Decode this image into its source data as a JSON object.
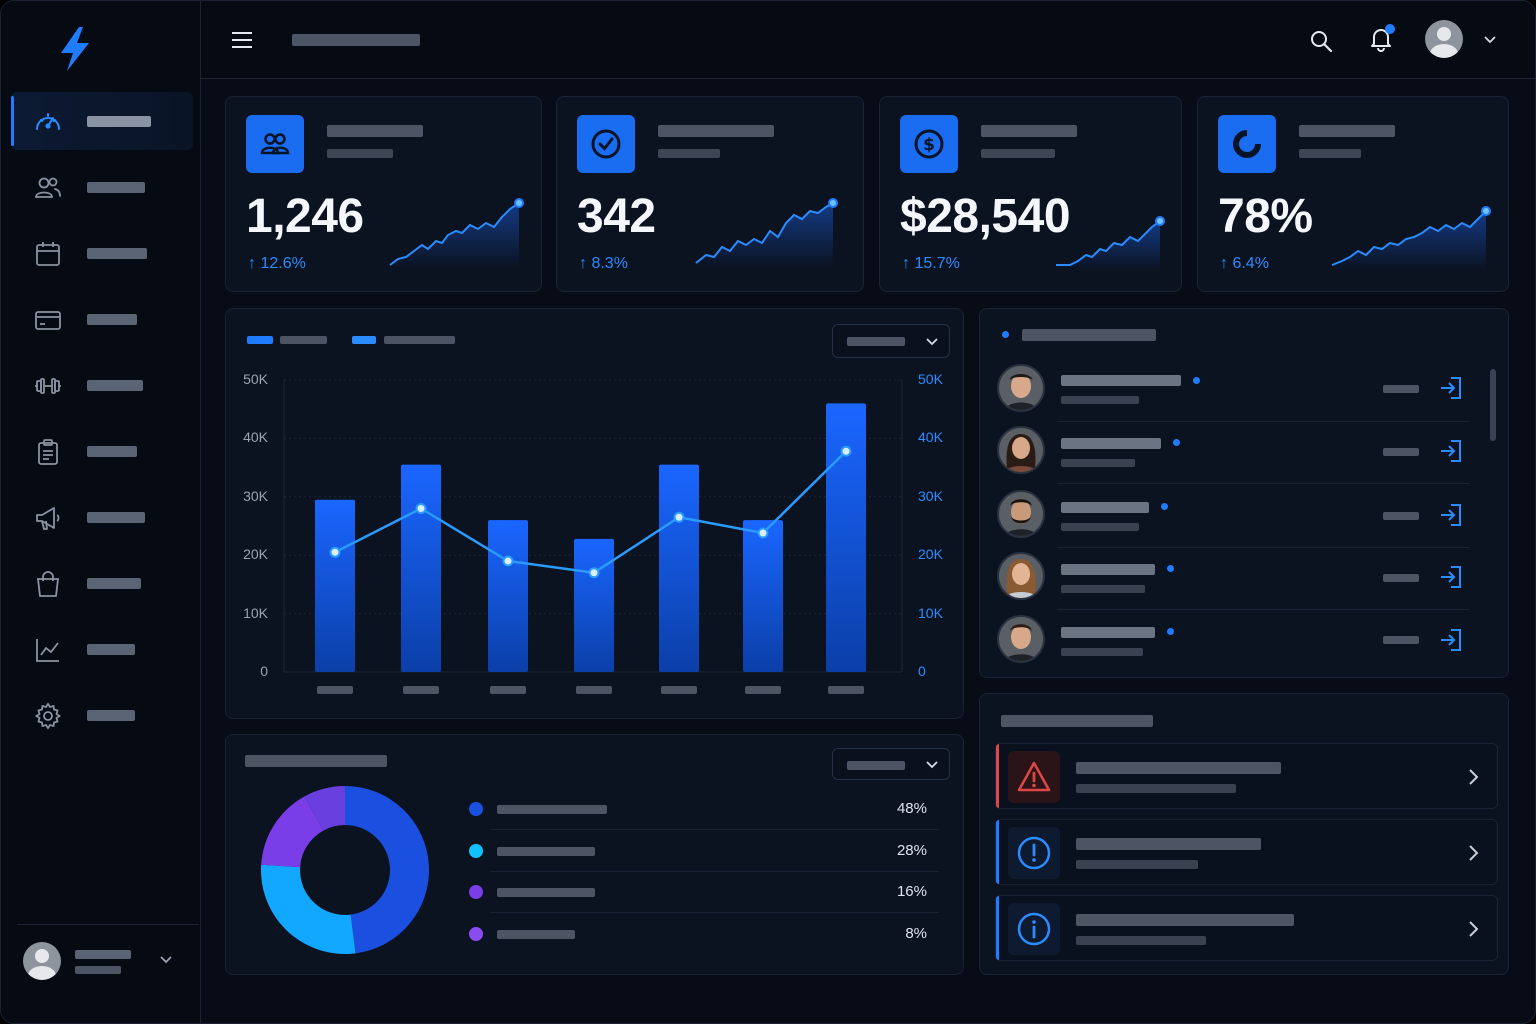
{
  "kpis": [
    {
      "value": "1,246",
      "delta": "↑ 12.6%",
      "icon": "users-icon"
    },
    {
      "value": "342",
      "delta": "↑ 8.3%",
      "icon": "check-circle-icon"
    },
    {
      "value": "$28,540",
      "delta": "↑ 15.7%",
      "icon": "dollar-circle-icon"
    },
    {
      "value": "78%",
      "delta": "↑ 6.4%",
      "icon": "pie-chart-icon"
    }
  ],
  "nav_icons": [
    "speedometer-icon",
    "users-icon",
    "calendar-icon",
    "credit-card-icon",
    "dumbbell-icon",
    "clipboard-icon",
    "megaphone-icon",
    "shopping-bag-icon",
    "line-chart-icon",
    "gear-icon"
  ],
  "chart_data": [
    {
      "type": "bar",
      "y_left_ticks": [
        "50K",
        "40K",
        "30K",
        "20K",
        "10K",
        "0"
      ],
      "y_right_ticks": [
        "50K",
        "40K",
        "30K",
        "20K",
        "10K",
        "0"
      ],
      "ylim": [
        0,
        50000
      ],
      "series": [
        {
          "type": "bar",
          "values": [
            29500,
            35500,
            26000,
            22800,
            35500,
            26000,
            46000
          ]
        },
        {
          "type": "line",
          "values": [
            20500,
            28000,
            19000,
            17000,
            26500,
            23800,
            37800
          ]
        }
      ],
      "colors": {
        "bar": "#1a64ff",
        "line": "#2a9bff"
      },
      "grid": true
    },
    {
      "type": "pie",
      "values": [
        48,
        28,
        16,
        8
      ],
      "labels": [
        "48%",
        "28%",
        "16%",
        "8%"
      ],
      "colors": [
        "#1a4fe0",
        "#12a8ff",
        "#7a3ee8",
        "#6a3fe0"
      ],
      "donut": true
    }
  ],
  "colors": {
    "accent": "#1f7cff",
    "danger": "#e04646",
    "info": "#1f7cff"
  }
}
